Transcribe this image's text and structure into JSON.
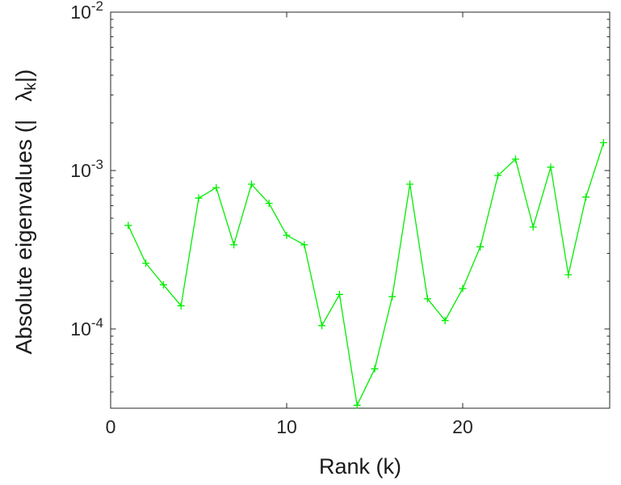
{
  "chart_data": {
    "type": "line",
    "title": "",
    "xlabel": "Rank (k)",
    "ylabel": "Absolute eigenvalues (|λ_k|)",
    "ylabel_parts": {
      "prefix": "Absolute eigenvalues (|",
      "symbol": "λ",
      "subscript": "k",
      "suffix": "|)"
    },
    "x": [
      1,
      2,
      3,
      4,
      5,
      6,
      7,
      8,
      9,
      10,
      11,
      12,
      13,
      14,
      15,
      16,
      17,
      18,
      19,
      20,
      21,
      22,
      23,
      24,
      25,
      26,
      27,
      28
    ],
    "y": [
      0.00045,
      0.00026,
      0.00019,
      0.00014,
      0.00067,
      0.00078,
      0.00034,
      0.00082,
      0.00062,
      0.00039,
      0.00034,
      0.000105,
      0.000165,
      3.3e-05,
      5.6e-05,
      0.00016,
      0.00082,
      0.000155,
      0.000113,
      0.00018,
      0.00033,
      0.00093,
      0.00118,
      0.00044,
      0.00105,
      0.00022,
      0.00068,
      0.0015
    ],
    "xlim": [
      0,
      28.35
    ],
    "ylim": [
      3.16e-05,
      0.01
    ],
    "xticks": [
      0,
      10,
      20
    ],
    "ytick_exponents": [
      -2,
      -3,
      -4
    ],
    "yscale": "log",
    "grid": false,
    "legend": "none",
    "marker": "plus",
    "colors": {
      "line": "#00ee00",
      "axis": "#262626",
      "tick_label": "#262626",
      "background": "#ffffff"
    }
  }
}
